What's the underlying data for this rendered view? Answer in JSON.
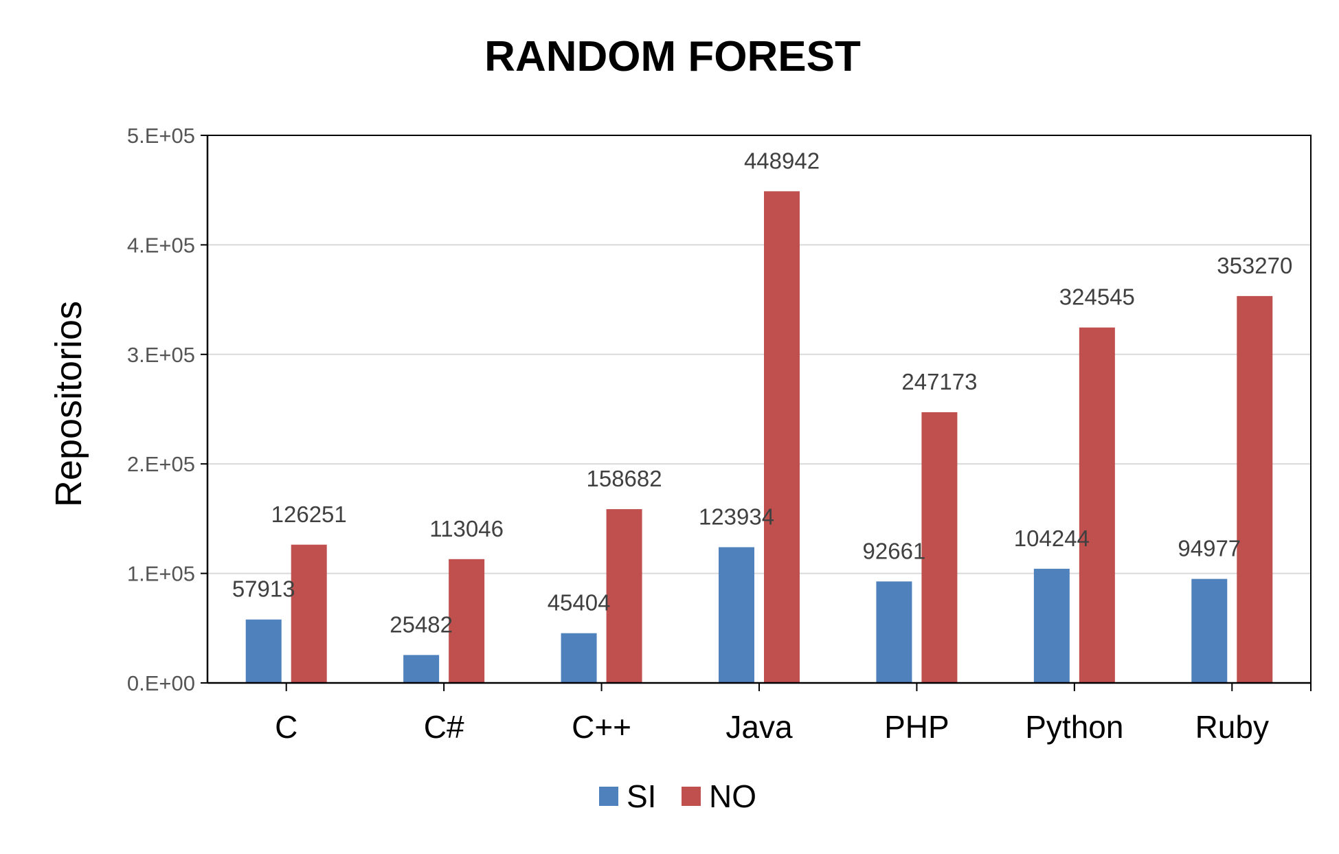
{
  "chart_data": {
    "type": "bar",
    "title": "RANDOM FOREST",
    "xlabel": "",
    "ylabel": "Repositorios",
    "ylim": [
      0,
      500000
    ],
    "yticks": [
      {
        "value": 0,
        "label": "0.E+00"
      },
      {
        "value": 100000,
        "label": "1.E+05"
      },
      {
        "value": 200000,
        "label": "2.E+05"
      },
      {
        "value": 300000,
        "label": "3.E+05"
      },
      {
        "value": 400000,
        "label": "4.E+05"
      },
      {
        "value": 500000,
        "label": "5.E+05"
      }
    ],
    "categories": [
      "C",
      "C#",
      "C++",
      "Java",
      "PHP",
      "Python",
      "Ruby"
    ],
    "series": [
      {
        "name": "SI",
        "color": "#4F81BD",
        "values": [
          57913,
          25482,
          45404,
          123934,
          92661,
          104244,
          94977
        ]
      },
      {
        "name": "NO",
        "color": "#C0504D",
        "values": [
          126251,
          113046,
          158682,
          448942,
          247173,
          324545,
          353270
        ]
      }
    ],
    "grid": true,
    "legend_position": "bottom"
  }
}
